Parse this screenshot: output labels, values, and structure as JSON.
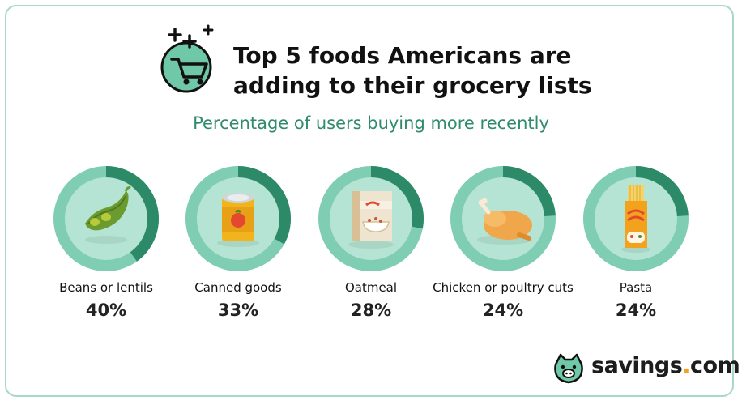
{
  "header": {
    "title_line1": "Top 5 foods Americans are",
    "title_line2": "adding to their grocery lists",
    "subtitle": "Percentage of users buying more recently",
    "icon": "shopping-cart-icon"
  },
  "colors": {
    "ring_bg": "#7fcdb3",
    "ring_fill": "#2d8a68",
    "inner": "#b5e3d4",
    "subtitle": "#2f8a6e"
  },
  "chart_data": {
    "type": "pie",
    "categories": [
      "Beans or lentils",
      "Canned goods",
      "Oatmeal",
      "Chicken or poultry cuts",
      "Pasta"
    ],
    "values": [
      40,
      33,
      28,
      24,
      24
    ],
    "value_labels": [
      "40%",
      "33%",
      "28%",
      "24%",
      "24%"
    ],
    "icons": [
      "beans-icon",
      "canned-goods-icon",
      "oatmeal-icon",
      "chicken-icon",
      "pasta-icon"
    ]
  },
  "brand": {
    "logo_text": "savings",
    "logo_dot": ".",
    "logo_suffix": "com",
    "logo_icon": "pig-logo-icon"
  }
}
